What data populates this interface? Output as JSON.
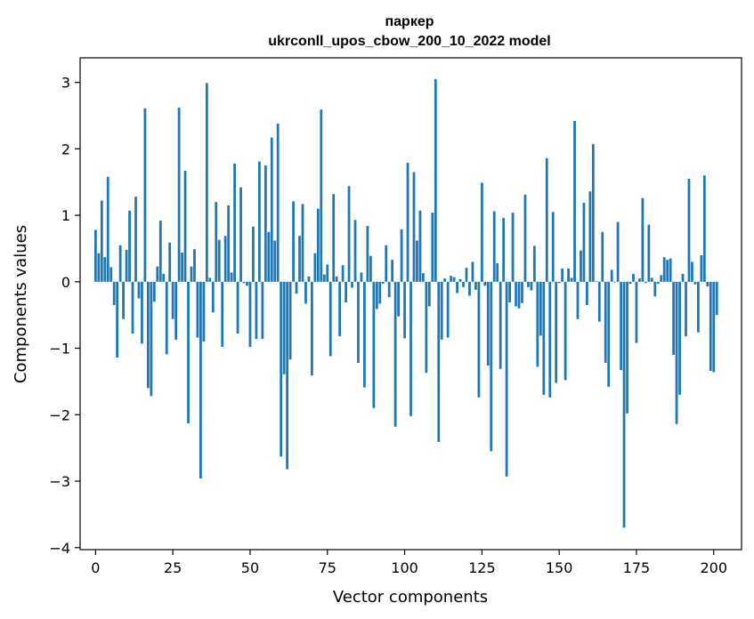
{
  "chart_data": {
    "type": "bar",
    "title_line1": "паркер",
    "title_line2": "ukrconll_upos_cbow_200_10_2022 model",
    "xlabel": "Vector components",
    "ylabel": "Components values",
    "xlim": [
      -5,
      209
    ],
    "ylim": [
      -4.03,
      3.37
    ],
    "xticks": [
      0,
      25,
      50,
      75,
      100,
      125,
      150,
      175,
      200
    ],
    "yticks": [
      -4,
      -3,
      -2,
      -1,
      0,
      1,
      2,
      3
    ],
    "ytick_labels": [
      "−4",
      "−3",
      "−2",
      "−1",
      "0",
      "1",
      "2",
      "3"
    ],
    "bar_color": "#1f77b4",
    "grid": false,
    "values": [
      0.78,
      0.43,
      1.22,
      0.37,
      1.58,
      0.22,
      -0.35,
      -1.14,
      0.55,
      -0.56,
      0.48,
      1.07,
      -0.78,
      1.28,
      -0.25,
      -0.93,
      2.61,
      -1.6,
      -1.72,
      -0.3,
      0.23,
      0.92,
      0.12,
      -1.09,
      0.59,
      -0.56,
      -0.87,
      2.62,
      0.44,
      1.67,
      -2.13,
      0.23,
      0.49,
      -0.84,
      -2.96,
      -0.9,
      2.99,
      0.06,
      -0.46,
      1.2,
      0.63,
      -0.98,
      0.69,
      1.15,
      0.14,
      1.78,
      -0.78,
      1.42,
      -0.02,
      -0.06,
      -0.98,
      0.83,
      -0.86,
      1.81,
      -0.86,
      1.75,
      0.75,
      2.17,
      0.62,
      2.38,
      -2.63,
      -1.39,
      -2.82,
      -1.17,
      1.21,
      -0.18,
      0.69,
      1.17,
      -0.33,
      0.08,
      -1.41,
      0.43,
      1.1,
      2.59,
      0.11,
      0.26,
      -1.12,
      1.32,
      0.08,
      -0.82,
      0.25,
      -0.31,
      1.44,
      -0.09,
      0.93,
      -1.22,
      0.14,
      -1.59,
      0.84,
      0.39,
      -1.9,
      -0.41,
      -0.33,
      -0.03,
      0.55,
      -0.23,
      0.33,
      -2.18,
      -0.52,
      0.79,
      -0.85,
      1.79,
      -2.02,
      1.65,
      0.62,
      1.07,
      0.13,
      -1.37,
      -0.37,
      1.04,
      3.05,
      -2.41,
      -0.87,
      0.05,
      -0.84,
      0.09,
      0.07,
      -0.17,
      0.04,
      -0.08,
      0.21,
      -0.21,
      0.3,
      -0.12,
      -1.74,
      1.49,
      -0.06,
      -1.26,
      -2.55,
      1.06,
      0.28,
      -1.31,
      0.96,
      -2.93,
      -0.31,
      1.04,
      -0.37,
      -0.4,
      -0.32,
      1.31,
      -0.08,
      -0.13,
      0.54,
      -1.28,
      -0.81,
      -1.7,
      1.86,
      -1.74,
      1.05,
      -1.52,
      -0.02,
      0.2,
      -1.48,
      0.2,
      0.06,
      2.42,
      -0.56,
      0.47,
      1.19,
      -0.35,
      1.36,
      2.07,
      0.01,
      -0.6,
      0.75,
      -1.22,
      -1.58,
      0.18,
      -0.01,
      0.9,
      -1.33,
      -3.7,
      -1.98,
      -0.03,
      0.12,
      -0.92,
      0.05,
      1.26,
      -0.02,
      0.86,
      0.06,
      -0.22,
      -0.03,
      0.1,
      0.37,
      0.33,
      0.35,
      -1.1,
      -2.14,
      -1.7,
      0.12,
      -0.82,
      1.55,
      0.3,
      -0.04,
      -0.76,
      0.4,
      1.6,
      -0.07,
      -1.34,
      -1.36,
      -0.5
    ]
  }
}
